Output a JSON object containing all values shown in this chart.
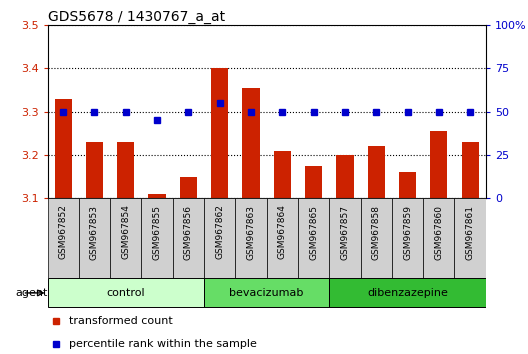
{
  "title": "GDS5678 / 1430767_a_at",
  "samples": [
    "GSM967852",
    "GSM967853",
    "GSM967854",
    "GSM967855",
    "GSM967856",
    "GSM967862",
    "GSM967863",
    "GSM967864",
    "GSM967865",
    "GSM967857",
    "GSM967858",
    "GSM967859",
    "GSM967860",
    "GSM967861"
  ],
  "bar_values": [
    3.33,
    3.23,
    3.23,
    3.11,
    3.15,
    3.4,
    3.355,
    3.21,
    3.175,
    3.2,
    3.22,
    3.16,
    3.255,
    3.23
  ],
  "dot_values": [
    50,
    50,
    50,
    45,
    50,
    55,
    50,
    50,
    50,
    50,
    50,
    50,
    50,
    50
  ],
  "ylim_left": [
    3.1,
    3.5
  ],
  "ylim_right": [
    0,
    100
  ],
  "yticks_left": [
    3.1,
    3.2,
    3.3,
    3.4,
    3.5
  ],
  "yticks_right": [
    0,
    25,
    50,
    75,
    100
  ],
  "ytick_labels_right": [
    "0",
    "25",
    "50",
    "75",
    "100%"
  ],
  "bar_color": "#cc2200",
  "dot_color": "#0000cc",
  "bg_color": "#ffffff",
  "plot_bg_color": "#ffffff",
  "sample_band_color": "#d0d0d0",
  "groups": [
    {
      "label": "control",
      "start": 0,
      "end": 5,
      "color": "#ccffcc"
    },
    {
      "label": "bevacizumab",
      "start": 5,
      "end": 9,
      "color": "#66dd66"
    },
    {
      "label": "dibenzazepine",
      "start": 9,
      "end": 14,
      "color": "#33bb33"
    }
  ],
  "agent_label": "agent",
  "legend_bar_label": "transformed count",
  "legend_dot_label": "percentile rank within the sample",
  "title_fontsize": 10,
  "axis_label_color_left": "#cc2200",
  "axis_label_color_right": "#0000cc"
}
